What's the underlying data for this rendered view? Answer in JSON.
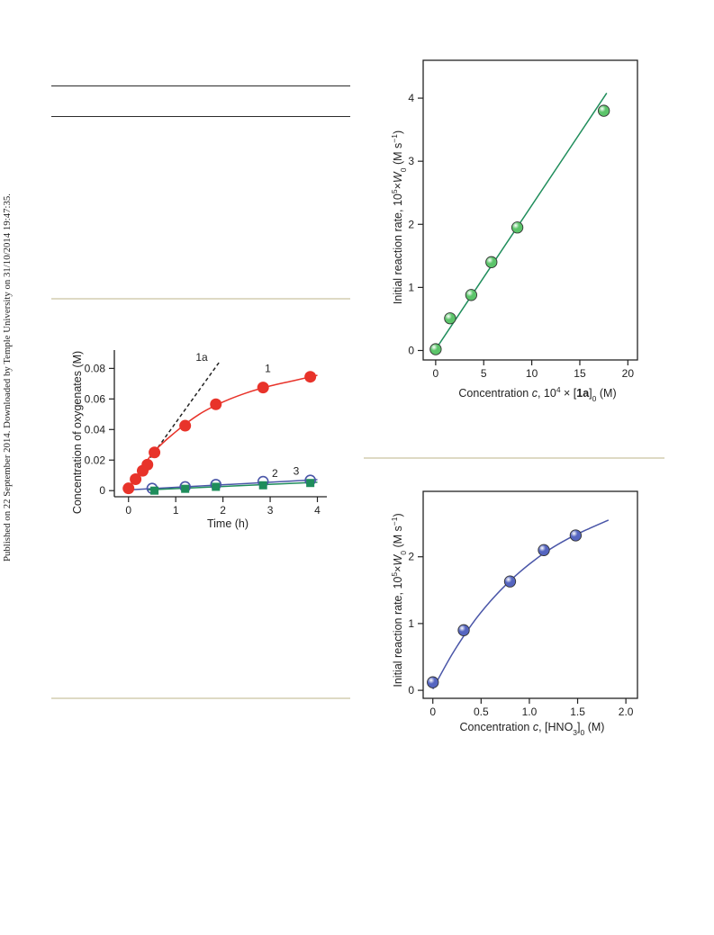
{
  "side_note": "Published on 22 September 2014. Downloaded by Temple University on 31/10/2014 19:47:35.",
  "colors": {
    "red": "#e8332a",
    "blue": "#4a56a8",
    "green": "#1f8d5b",
    "light_green": "#5cc46a",
    "beige_rule": "#dedac4"
  },
  "chart_data": [
    {
      "id": "oxygenates_vs_time",
      "type": "scatter",
      "xlabel": "Time  (h)",
      "ylabel": "Concentration of oxygenates (M)",
      "xlim": [
        -0.3,
        4.2
      ],
      "ylim": [
        -0.004,
        0.092
      ],
      "xticks": [
        0,
        1,
        2,
        3,
        4
      ],
      "xtick_labels": [
        "0",
        "1",
        "2",
        "3",
        "4"
      ],
      "yticks": [
        0,
        0.02,
        0.04,
        0.06,
        0.08
      ],
      "ytick_labels": [
        "0",
        "0.02",
        "0.04",
        "0.06",
        "0.08"
      ],
      "series": [
        {
          "name": "1",
          "marker": "filled-circle",
          "color": "#e8332a",
          "x": [
            0,
            0.15,
            0.3,
            0.4,
            0.55,
            1.2,
            1.85,
            2.85,
            3.85
          ],
          "y": [
            0.0015,
            0.0075,
            0.013,
            0.017,
            0.025,
            0.0425,
            0.0565,
            0.0675,
            0.0745
          ]
        },
        {
          "name": "2",
          "marker": "open-circle",
          "color": "#4a56a8",
          "x": [
            0.5,
            1.2,
            1.85,
            2.85,
            3.85
          ],
          "y": [
            0.0015,
            0.0025,
            0.004,
            0.006,
            0.0068
          ]
        },
        {
          "name": "3",
          "marker": "filled-square",
          "color": "#1f8d5b",
          "x": [
            0.55,
            1.2,
            1.85,
            2.85,
            3.85
          ],
          "y": [
            0.0,
            0.0012,
            0.0025,
            0.0035,
            0.005
          ]
        }
      ],
      "curves": [
        {
          "name": "1",
          "color": "#e8332a",
          "x": [
            0,
            0.5,
            1.0,
            1.5,
            2.0,
            2.5,
            3.0,
            3.5,
            4.0
          ],
          "y": [
            0.0015,
            0.024,
            0.0385,
            0.05,
            0.058,
            0.064,
            0.0685,
            0.072,
            0.0755
          ]
        },
        {
          "name": "2",
          "color": "#4a56a8",
          "x": [
            0,
            4.0
          ],
          "y": [
            0.0005,
            0.0072
          ]
        },
        {
          "name": "3",
          "color": "#1f8d5b",
          "x": [
            0.4,
            4.0
          ],
          "y": [
            0.0005,
            0.0055
          ]
        }
      ],
      "tangent": {
        "name": "1a",
        "x": [
          0,
          1.92
        ],
        "y": [
          0.0015,
          0.084
        ]
      },
      "annotations": [
        {
          "text": "1a",
          "x": 1.55,
          "y": 0.085
        },
        {
          "text": "1",
          "x": 2.95,
          "y": 0.0775
        },
        {
          "text": "2",
          "x": 3.1,
          "y": 0.009
        },
        {
          "text": "3",
          "x": 3.55,
          "y": 0.0105
        }
      ]
    },
    {
      "id": "rate_vs_1a",
      "type": "scatter",
      "xlabel_parts": [
        "Concentration ",
        "c",
        ", 10",
        "4",
        " × [",
        "1a",
        "]",
        "0",
        " (M)"
      ],
      "ylabel_parts": [
        "Initial reaction rate, 10",
        "5",
        "×",
        "W",
        "0",
        " (M s",
        "−1",
        ")"
      ],
      "xlim": [
        -1.3,
        21.0
      ],
      "ylim": [
        -0.15,
        4.6
      ],
      "xticks": [
        0,
        5,
        10,
        15,
        20
      ],
      "xtick_labels": [
        "0",
        "5",
        "10",
        "15",
        "20"
      ],
      "yticks": [
        0,
        1,
        2,
        3,
        4
      ],
      "ytick_labels": [
        "0",
        "1",
        "2",
        "3",
        "4"
      ],
      "points": {
        "color": "#5cc46a",
        "x": [
          0,
          1.5,
          3.7,
          5.8,
          8.5,
          17.5
        ],
        "y": [
          0.02,
          0.51,
          0.88,
          1.4,
          1.95,
          3.8
        ]
      },
      "fit": {
        "color": "#1f8d5b",
        "x": [
          -0.3,
          17.8
        ],
        "y": [
          -0.05,
          4.08
        ]
      }
    },
    {
      "id": "rate_vs_hno3",
      "type": "scatter",
      "xlabel_parts": [
        "Concentration ",
        "c",
        ",  [HNO",
        "3",
        "]",
        "0",
        " (M)"
      ],
      "ylabel_parts": [
        "Initial reaction rate, 10",
        "5",
        "×",
        "W",
        "0",
        " (M s",
        "−1",
        ")"
      ],
      "xlim": [
        -0.1,
        2.12
      ],
      "ylim": [
        -0.12,
        2.98
      ],
      "xticks": [
        0,
        0.5,
        1.0,
        1.5,
        2.0
      ],
      "xtick_labels": [
        "0",
        "0.5",
        "1.0",
        "1.5",
        "2.0"
      ],
      "yticks": [
        0,
        1,
        2
      ],
      "ytick_labels": [
        "0",
        "1",
        "2"
      ],
      "points": {
        "color": "#5565c0",
        "x": [
          0,
          0.32,
          0.8,
          1.15,
          1.48
        ],
        "y": [
          0.12,
          0.9,
          1.63,
          2.1,
          2.32
        ]
      },
      "fit": {
        "color": "#4a56a8",
        "x": [
          0,
          0.2,
          0.4,
          0.6,
          0.8,
          1.0,
          1.2,
          1.4,
          1.6,
          1.82
        ],
        "y": [
          0.02,
          0.54,
          0.98,
          1.34,
          1.64,
          1.89,
          2.1,
          2.27,
          2.41,
          2.55
        ]
      }
    }
  ]
}
